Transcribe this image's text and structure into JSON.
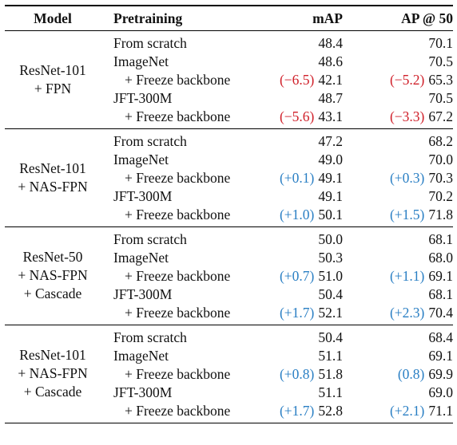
{
  "headers": {
    "model": "Model",
    "pretraining": "Pretraining",
    "map": "mAP",
    "ap50": "AP @ 50"
  },
  "groups": [
    {
      "model_lines": [
        "ResNet-101",
        "+ FPN"
      ],
      "rows": [
        {
          "pretraining": "From scratch",
          "indent": false,
          "map_delta": "",
          "map_delta_sign": "",
          "map": "48.4",
          "ap_delta": "",
          "ap_delta_sign": "",
          "ap": "70.1"
        },
        {
          "pretraining": "ImageNet",
          "indent": false,
          "map_delta": "",
          "map_delta_sign": "",
          "map": "48.6",
          "ap_delta": "",
          "ap_delta_sign": "",
          "ap": "70.5"
        },
        {
          "pretraining": "+ Freeze backbone",
          "indent": true,
          "map_delta": "(−6.5)",
          "map_delta_sign": "neg",
          "map": "42.1",
          "ap_delta": "(−5.2)",
          "ap_delta_sign": "neg",
          "ap": "65.3"
        },
        {
          "pretraining": "JFT-300M",
          "indent": false,
          "map_delta": "",
          "map_delta_sign": "",
          "map": "48.7",
          "ap_delta": "",
          "ap_delta_sign": "",
          "ap": "70.5"
        },
        {
          "pretraining": "+ Freeze backbone",
          "indent": true,
          "map_delta": "(−5.6)",
          "map_delta_sign": "neg",
          "map": "43.1",
          "ap_delta": "(−3.3)",
          "ap_delta_sign": "neg",
          "ap": "67.2"
        }
      ]
    },
    {
      "model_lines": [
        "ResNet-101",
        "+ NAS-FPN"
      ],
      "rows": [
        {
          "pretraining": "From scratch",
          "indent": false,
          "map_delta": "",
          "map_delta_sign": "",
          "map": "47.2",
          "ap_delta": "",
          "ap_delta_sign": "",
          "ap": "68.2"
        },
        {
          "pretraining": "ImageNet",
          "indent": false,
          "map_delta": "",
          "map_delta_sign": "",
          "map": "49.0",
          "ap_delta": "",
          "ap_delta_sign": "",
          "ap": "70.0"
        },
        {
          "pretraining": "+ Freeze backbone",
          "indent": true,
          "map_delta": "(+0.1)",
          "map_delta_sign": "pos",
          "map": "49.1",
          "ap_delta": "(+0.3)",
          "ap_delta_sign": "pos",
          "ap": "70.3"
        },
        {
          "pretraining": "JFT-300M",
          "indent": false,
          "map_delta": "",
          "map_delta_sign": "",
          "map": "49.1",
          "ap_delta": "",
          "ap_delta_sign": "",
          "ap": "70.2"
        },
        {
          "pretraining": "+ Freeze backbone",
          "indent": true,
          "map_delta": "(+1.0)",
          "map_delta_sign": "pos",
          "map": "50.1",
          "ap_delta": "(+1.5)",
          "ap_delta_sign": "pos",
          "ap": "71.8"
        }
      ]
    },
    {
      "model_lines": [
        "ResNet-50",
        "+ NAS-FPN",
        "+ Cascade"
      ],
      "rows": [
        {
          "pretraining": "From scratch",
          "indent": false,
          "map_delta": "",
          "map_delta_sign": "",
          "map": "50.0",
          "ap_delta": "",
          "ap_delta_sign": "",
          "ap": "68.1"
        },
        {
          "pretraining": "ImageNet",
          "indent": false,
          "map_delta": "",
          "map_delta_sign": "",
          "map": "50.3",
          "ap_delta": "",
          "ap_delta_sign": "",
          "ap": "68.0"
        },
        {
          "pretraining": "+ Freeze backbone",
          "indent": true,
          "map_delta": "(+0.7)",
          "map_delta_sign": "pos",
          "map": "51.0",
          "ap_delta": "(+1.1)",
          "ap_delta_sign": "pos",
          "ap": "69.1"
        },
        {
          "pretraining": "JFT-300M",
          "indent": false,
          "map_delta": "",
          "map_delta_sign": "",
          "map": "50.4",
          "ap_delta": "",
          "ap_delta_sign": "",
          "ap": "68.1"
        },
        {
          "pretraining": "+ Freeze backbone",
          "indent": true,
          "map_delta": "(+1.7)",
          "map_delta_sign": "pos",
          "map": "52.1",
          "ap_delta": "(+2.3)",
          "ap_delta_sign": "pos",
          "ap": "70.4"
        }
      ]
    },
    {
      "model_lines": [
        "ResNet-101",
        "+ NAS-FPN",
        "+ Cascade"
      ],
      "rows": [
        {
          "pretraining": "From scratch",
          "indent": false,
          "map_delta": "",
          "map_delta_sign": "",
          "map": "50.4",
          "ap_delta": "",
          "ap_delta_sign": "",
          "ap": "68.4"
        },
        {
          "pretraining": "ImageNet",
          "indent": false,
          "map_delta": "",
          "map_delta_sign": "",
          "map": "51.1",
          "ap_delta": "",
          "ap_delta_sign": "",
          "ap": "69.1"
        },
        {
          "pretraining": "+ Freeze backbone",
          "indent": true,
          "map_delta": "(+0.8)",
          "map_delta_sign": "pos",
          "map": "51.8",
          "ap_delta": "(0.8)",
          "ap_delta_sign": "pos",
          "ap": "69.9"
        },
        {
          "pretraining": "JFT-300M",
          "indent": false,
          "map_delta": "",
          "map_delta_sign": "",
          "map": "51.1",
          "ap_delta": "",
          "ap_delta_sign": "",
          "ap": "69.0"
        },
        {
          "pretraining": "+ Freeze backbone",
          "indent": true,
          "map_delta": "(+1.7)",
          "map_delta_sign": "pos",
          "map": "52.8",
          "ap_delta": "(+2.1)",
          "ap_delta_sign": "pos",
          "ap": "71.1"
        }
      ]
    }
  ],
  "colors": {
    "negative": "#d0202a",
    "positive": "#2a7fc4"
  }
}
